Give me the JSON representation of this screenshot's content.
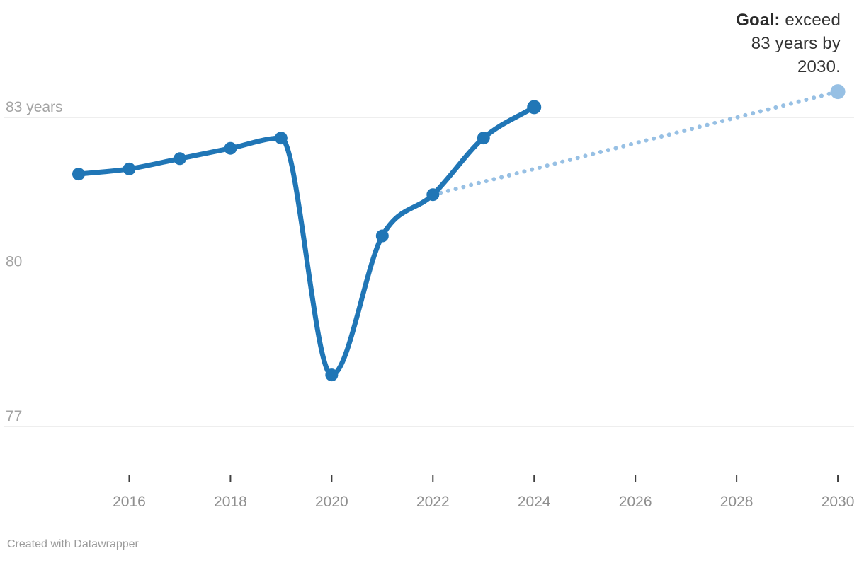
{
  "chart_data": {
    "type": "line",
    "title": "",
    "xlabel": "",
    "ylabel": "years",
    "x": [
      2015,
      2016,
      2017,
      2018,
      2019,
      2020,
      2021,
      2022,
      2023,
      2024
    ],
    "series": [
      {
        "name": "life-expectancy-actual",
        "style": "solid",
        "color": "#2076b6",
        "x": [
          2015,
          2016,
          2017,
          2018,
          2019,
          2020,
          2021,
          2022,
          2023,
          2024
        ],
        "values": [
          81.9,
          82.0,
          82.2,
          82.4,
          82.6,
          78.0,
          80.7,
          81.5,
          82.6,
          83.2
        ]
      },
      {
        "name": "goal-projection",
        "style": "dotted",
        "color": "#97c0e4",
        "x": [
          2022,
          2030
        ],
        "values": [
          81.5,
          83.5
        ]
      }
    ],
    "y_ticks": [
      {
        "value": 83,
        "label": "83 years"
      },
      {
        "value": 80,
        "label": "80"
      },
      {
        "value": 77,
        "label": "77"
      }
    ],
    "x_ticks": [
      {
        "value": 2016,
        "label": "2016"
      },
      {
        "value": 2018,
        "label": "2018"
      },
      {
        "value": 2020,
        "label": "2020"
      },
      {
        "value": 2022,
        "label": "2022"
      },
      {
        "value": 2024,
        "label": "2024"
      },
      {
        "value": 2026,
        "label": "2026"
      },
      {
        "value": 2028,
        "label": "2028"
      },
      {
        "value": 2030,
        "label": "2030"
      }
    ],
    "xlim": [
      2015,
      2030
    ],
    "ylim": [
      76.2,
      84.1
    ],
    "grid": "horizontal",
    "legend_position": "none"
  },
  "annotation": {
    "bold": "Goal:",
    "line1_rest": " exceed",
    "line2": "83 years by",
    "line3": "2030."
  },
  "footer": {
    "credit": "Created with Datawrapper"
  },
  "colors": {
    "line": "#2076b6",
    "goal": "#97c0e4",
    "grid": "#dcdcdc",
    "y_label": "#a3a3a3",
    "x_label": "#8f8f8f",
    "tick_mark": "#404040",
    "annotation_text": "#333333",
    "credit_text": "#9b9b9b",
    "background": "#ffffff"
  }
}
